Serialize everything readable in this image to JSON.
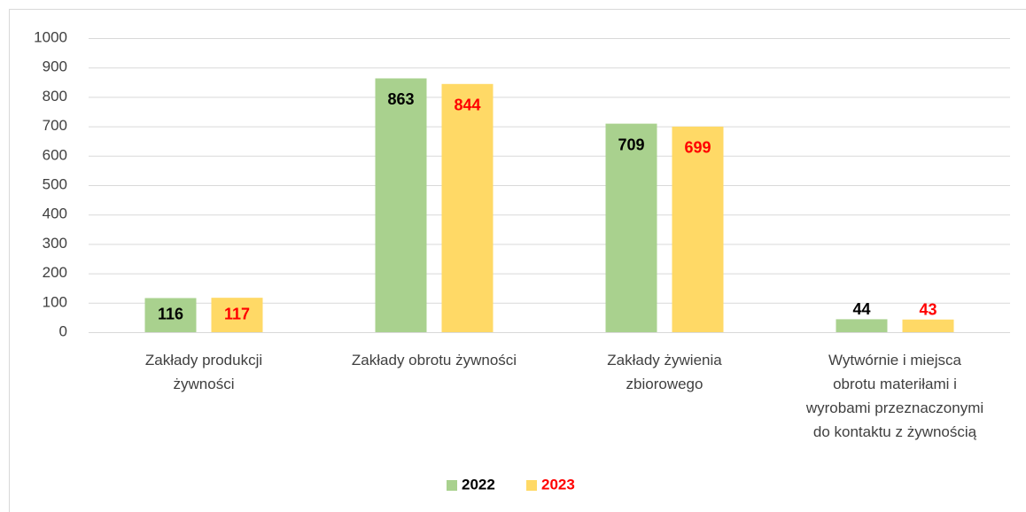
{
  "chart_data": {
    "type": "bar",
    "categories": [
      "Zakłady produkcji żywności",
      "Zakłady obrotu żywności",
      "Zakłady żywienia zbiorowego",
      "Wytwórnie i miejsca obrotu materiłami i wyrobami przeznaczonymi do kontaktu z żywnością"
    ],
    "series": [
      {
        "name": "2022",
        "color": "#a9d18e",
        "label_color": "#000000",
        "values": [
          116,
          863,
          709,
          44
        ]
      },
      {
        "name": "2023",
        "color": "#ffd966",
        "label_color": "#ff0000",
        "values": [
          117,
          844,
          699,
          43
        ]
      }
    ],
    "ylim": [
      0,
      1000
    ],
    "yticks": [
      0,
      100,
      200,
      300,
      400,
      500,
      600,
      700,
      800,
      900,
      1000
    ],
    "grid": true,
    "legend": "bottom"
  }
}
